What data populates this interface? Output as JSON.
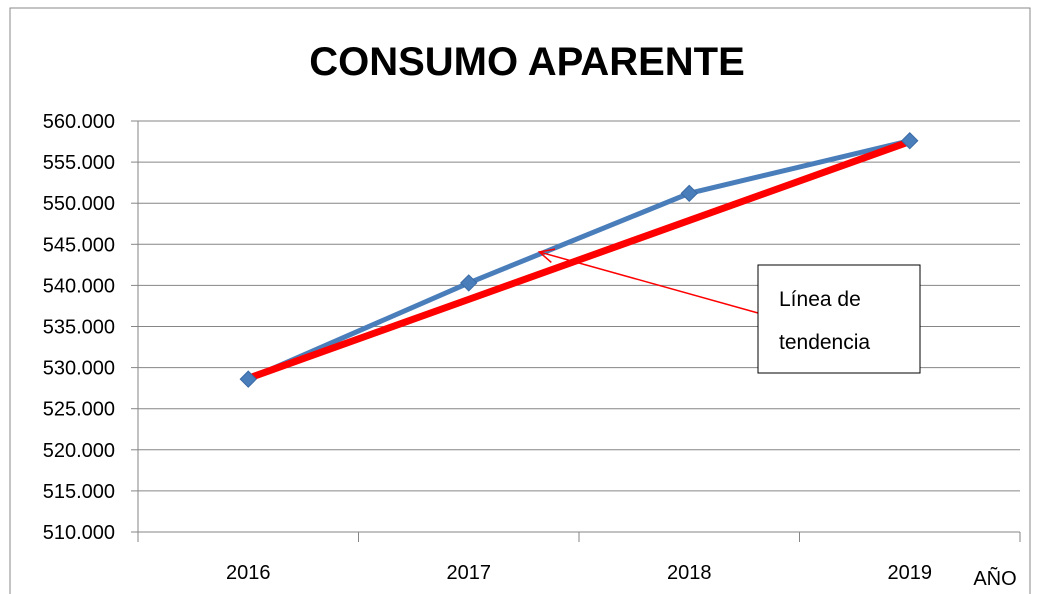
{
  "chart_data": {
    "type": "line",
    "title": "CONSUMO APARENTE",
    "x_label": "AÑO",
    "categories": [
      "2016",
      "2017",
      "2018",
      "2019"
    ],
    "series": [
      {
        "color": "#4a7ebb",
        "values": [
          528600,
          540300,
          551200,
          557600
        ]
      }
    ],
    "trendline": {
      "color": "#ff0000",
      "values": [
        528700,
        538300,
        547900,
        557500
      ]
    },
    "annotation": {
      "lines": [
        "Línea de",
        "tendencia"
      ],
      "target_category": 1
    },
    "ylim": [
      510000,
      560000
    ],
    "yticks": [
      {
        "value": 510000,
        "label": "510.000"
      },
      {
        "value": 515000,
        "label": "515.000"
      },
      {
        "value": 520000,
        "label": "520.000"
      },
      {
        "value": 525000,
        "label": "525.000"
      },
      {
        "value": 530000,
        "label": "530.000"
      },
      {
        "value": 535000,
        "label": "535.000"
      },
      {
        "value": 540000,
        "label": "540.000"
      },
      {
        "value": 545000,
        "label": "545.000"
      },
      {
        "value": 550000,
        "label": "550.000"
      },
      {
        "value": 555000,
        "label": "555.000"
      },
      {
        "value": 560000,
        "label": "560.000"
      }
    ],
    "grid": true
  }
}
